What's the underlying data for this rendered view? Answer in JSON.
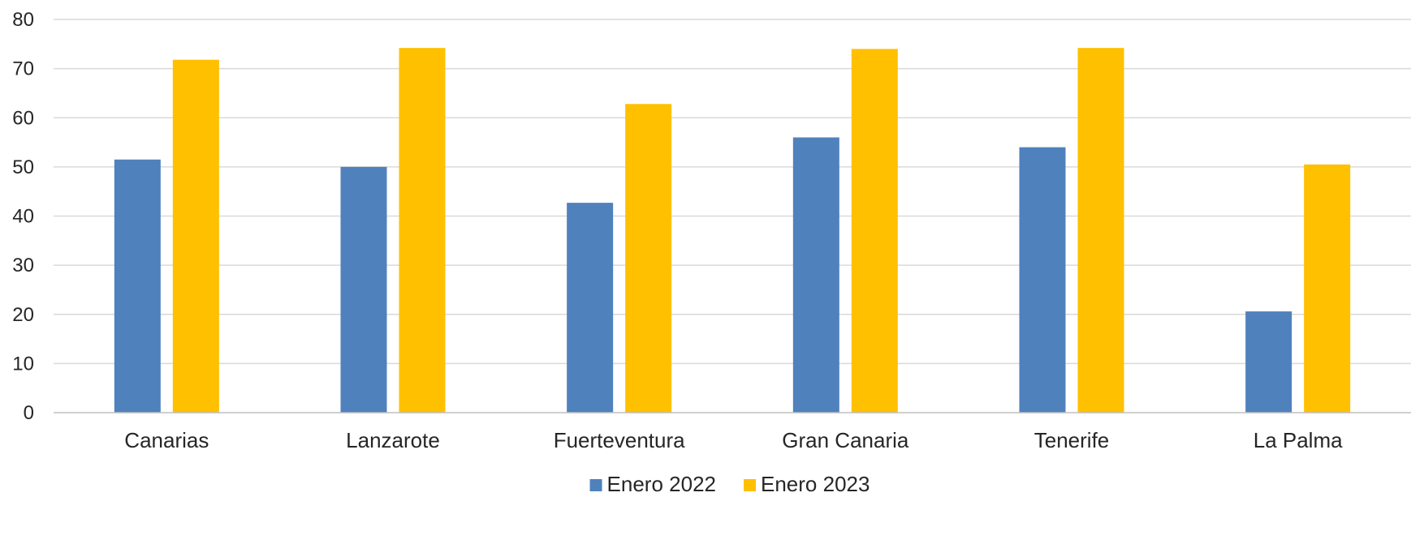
{
  "chart_data": {
    "type": "bar",
    "categories": [
      "Canarias",
      "Lanzarote",
      "Fuerteventura",
      "Gran Canaria",
      "Tenerife",
      "La Palma"
    ],
    "series": [
      {
        "name": "Enero 2022",
        "color": "#4f81bd",
        "values": [
          51.5,
          50.0,
          42.7,
          56.0,
          54.0,
          20.6
        ]
      },
      {
        "name": "Enero 2023",
        "color": "#ffc000",
        "values": [
          71.8,
          74.2,
          62.8,
          74.0,
          74.2,
          50.5
        ]
      }
    ],
    "ylim": [
      0,
      80
    ],
    "yticks": [
      0,
      10,
      20,
      30,
      40,
      50,
      60,
      70,
      80
    ],
    "title": "",
    "xlabel": "",
    "ylabel": "",
    "grid": true,
    "legend_position": "bottom-center"
  }
}
